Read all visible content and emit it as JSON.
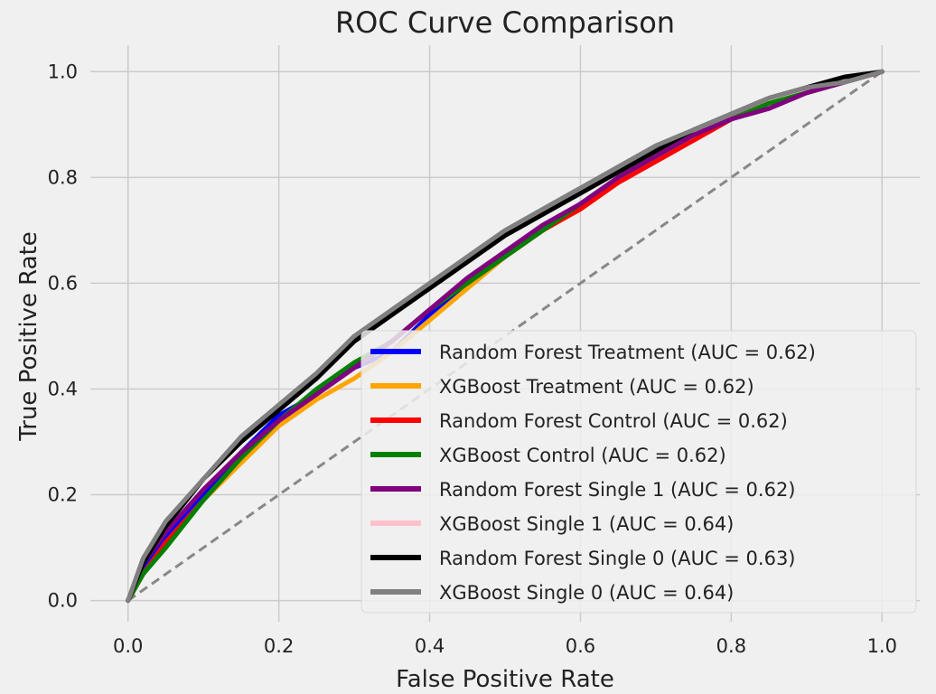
{
  "chart_data": {
    "type": "line",
    "title": "ROC Curve Comparison",
    "xlabel": "False Positive Rate",
    "ylabel": "True Positive Rate",
    "xlim": [
      -0.05,
      1.05
    ],
    "ylim": [
      -0.04,
      1.05
    ],
    "xticks": [
      0.0,
      0.2,
      0.4,
      0.6,
      0.8,
      1.0
    ],
    "yticks": [
      0.0,
      0.2,
      0.4,
      0.6,
      0.8,
      1.0
    ],
    "xtick_labels": [
      "0.0",
      "0.2",
      "0.4",
      "0.6",
      "0.8",
      "1.0"
    ],
    "ytick_labels": [
      "0.0",
      "0.2",
      "0.4",
      "0.6",
      "0.8",
      "1.0"
    ],
    "grid": true,
    "legend_position": "lower-right",
    "diagonal": {
      "x": [
        0,
        1
      ],
      "y": [
        0,
        1
      ],
      "color": "#888888",
      "style": "dashed"
    },
    "series": [
      {
        "name": "Random Forest Treatment (AUC = 0.62)",
        "color": "#0000ff",
        "x": [
          0,
          0.02,
          0.05,
          0.1,
          0.15,
          0.2,
          0.25,
          0.3,
          0.35,
          0.4,
          0.45,
          0.5,
          0.55,
          0.6,
          0.65,
          0.7,
          0.75,
          0.8,
          0.85,
          0.9,
          0.95,
          1.0
        ],
        "y": [
          0,
          0.06,
          0.12,
          0.2,
          0.28,
          0.35,
          0.39,
          0.44,
          0.47,
          0.54,
          0.6,
          0.65,
          0.7,
          0.75,
          0.79,
          0.84,
          0.88,
          0.91,
          0.94,
          0.96,
          0.98,
          1.0
        ]
      },
      {
        "name": "XGBoost Treatment (AUC = 0.62)",
        "color": "#ffa500",
        "x": [
          0,
          0.02,
          0.05,
          0.1,
          0.15,
          0.2,
          0.25,
          0.3,
          0.35,
          0.4,
          0.45,
          0.5,
          0.55,
          0.6,
          0.65,
          0.7,
          0.75,
          0.8,
          0.85,
          0.9,
          0.95,
          1.0
        ],
        "y": [
          0,
          0.05,
          0.11,
          0.19,
          0.26,
          0.33,
          0.38,
          0.42,
          0.47,
          0.53,
          0.59,
          0.65,
          0.7,
          0.74,
          0.79,
          0.84,
          0.88,
          0.91,
          0.94,
          0.96,
          0.98,
          1.0
        ]
      },
      {
        "name": "Random Forest Control (AUC = 0.62)",
        "color": "#ff0000",
        "x": [
          0,
          0.02,
          0.05,
          0.1,
          0.15,
          0.2,
          0.25,
          0.3,
          0.35,
          0.4,
          0.45,
          0.5,
          0.55,
          0.6,
          0.65,
          0.7,
          0.75,
          0.8,
          0.85,
          0.9,
          0.95,
          1.0
        ],
        "y": [
          0,
          0.05,
          0.11,
          0.19,
          0.27,
          0.34,
          0.39,
          0.44,
          0.49,
          0.55,
          0.6,
          0.65,
          0.7,
          0.74,
          0.79,
          0.83,
          0.87,
          0.91,
          0.94,
          0.96,
          0.98,
          1.0
        ]
      },
      {
        "name": "XGBoost Control (AUC = 0.62)",
        "color": "#008000",
        "x": [
          0,
          0.02,
          0.05,
          0.1,
          0.15,
          0.2,
          0.25,
          0.3,
          0.35,
          0.4,
          0.45,
          0.5,
          0.55,
          0.6,
          0.65,
          0.7,
          0.75,
          0.8,
          0.85,
          0.9,
          0.95,
          1.0
        ],
        "y": [
          0,
          0.05,
          0.1,
          0.19,
          0.27,
          0.34,
          0.4,
          0.45,
          0.49,
          0.55,
          0.6,
          0.65,
          0.7,
          0.75,
          0.8,
          0.84,
          0.88,
          0.91,
          0.94,
          0.96,
          0.98,
          1.0
        ]
      },
      {
        "name": "Random Forest Single 1 (AUC = 0.62)",
        "color": "#800080",
        "x": [
          0,
          0.02,
          0.05,
          0.1,
          0.15,
          0.2,
          0.25,
          0.3,
          0.35,
          0.4,
          0.45,
          0.5,
          0.55,
          0.6,
          0.65,
          0.7,
          0.75,
          0.8,
          0.85,
          0.9,
          0.95,
          1.0
        ],
        "y": [
          0,
          0.07,
          0.13,
          0.21,
          0.28,
          0.34,
          0.39,
          0.44,
          0.49,
          0.55,
          0.61,
          0.66,
          0.71,
          0.75,
          0.8,
          0.84,
          0.88,
          0.91,
          0.93,
          0.96,
          0.98,
          1.0
        ]
      },
      {
        "name": "XGBoost Single 1 (AUC = 0.64)",
        "color": "#ffc0cb",
        "x": [
          0,
          0.02,
          0.05,
          0.1,
          0.15,
          0.2,
          0.25,
          0.3,
          0.35,
          0.4,
          0.45,
          0.5,
          0.55,
          0.6,
          0.65,
          0.7,
          0.75,
          0.8,
          0.85,
          0.9,
          0.95,
          1.0
        ],
        "y": [
          0,
          0.07,
          0.14,
          0.23,
          0.3,
          0.37,
          0.42,
          0.49,
          0.55,
          0.6,
          0.65,
          0.7,
          0.74,
          0.78,
          0.82,
          0.86,
          0.89,
          0.92,
          0.95,
          0.97,
          0.99,
          1.0
        ]
      },
      {
        "name": "Random Forest Single 0 (AUC = 0.63)",
        "color": "#000000",
        "x": [
          0,
          0.02,
          0.05,
          0.1,
          0.15,
          0.2,
          0.25,
          0.3,
          0.35,
          0.4,
          0.45,
          0.5,
          0.55,
          0.6,
          0.65,
          0.7,
          0.75,
          0.8,
          0.85,
          0.9,
          0.95,
          1.0
        ],
        "y": [
          0,
          0.07,
          0.14,
          0.23,
          0.3,
          0.36,
          0.42,
          0.49,
          0.54,
          0.59,
          0.64,
          0.69,
          0.73,
          0.77,
          0.81,
          0.85,
          0.89,
          0.92,
          0.95,
          0.97,
          0.99,
          1.0
        ]
      },
      {
        "name": "XGBoost Single 0 (AUC = 0.64)",
        "color": "#808080",
        "x": [
          0,
          0.02,
          0.05,
          0.1,
          0.15,
          0.2,
          0.25,
          0.3,
          0.35,
          0.4,
          0.45,
          0.5,
          0.55,
          0.6,
          0.65,
          0.7,
          0.75,
          0.8,
          0.85,
          0.9,
          0.95,
          1.0
        ],
        "y": [
          0,
          0.08,
          0.15,
          0.23,
          0.31,
          0.37,
          0.43,
          0.5,
          0.55,
          0.6,
          0.65,
          0.7,
          0.74,
          0.78,
          0.82,
          0.86,
          0.89,
          0.92,
          0.95,
          0.97,
          0.98,
          1.0
        ]
      }
    ]
  }
}
